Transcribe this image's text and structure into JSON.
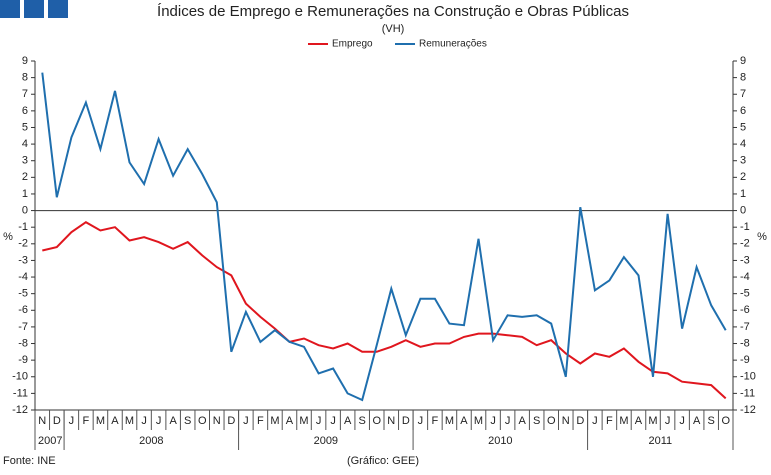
{
  "chart_data": {
    "type": "line",
    "title": "Índices de Emprego e Remunerações na Construção e Obras Públicas",
    "subtitle": "(VH)",
    "ylabel": "%",
    "y2label": "%",
    "categories": [
      "N",
      "D",
      "J",
      "F",
      "M",
      "A",
      "M",
      "J",
      "J",
      "A",
      "S",
      "O",
      "N",
      "D",
      "J",
      "F",
      "M",
      "A",
      "M",
      "J",
      "J",
      "A",
      "S",
      "O",
      "N",
      "D",
      "J",
      "F",
      "M",
      "A",
      "M",
      "J",
      "J",
      "A",
      "S",
      "O",
      "N",
      "D",
      "J",
      "F",
      "M",
      "A",
      "M",
      "J",
      "J",
      "A",
      "S",
      "O"
    ],
    "year_groups": [
      {
        "label": "2007",
        "count": 2
      },
      {
        "label": "2008",
        "count": 12
      },
      {
        "label": "2009",
        "count": 12
      },
      {
        "label": "2010",
        "count": 12
      },
      {
        "label": "2011",
        "count": 10
      }
    ],
    "series": [
      {
        "name": "Emprego",
        "color": "#e0161e",
        "values": [
          -2.4,
          -2.2,
          -1.3,
          -0.7,
          -1.2,
          -1.0,
          -1.8,
          -1.6,
          -1.9,
          -2.3,
          -1.9,
          -2.7,
          -3.4,
          -3.9,
          -5.6,
          -6.4,
          -7.1,
          -7.9,
          -7.7,
          -8.1,
          -8.3,
          -8.0,
          -8.5,
          -8.5,
          -8.2,
          -7.8,
          -8.2,
          -8.0,
          -8.0,
          -7.6,
          -7.4,
          -7.4,
          -7.5,
          -7.6,
          -8.1,
          -7.8,
          -8.6,
          -9.2,
          -8.6,
          -8.8,
          -8.3,
          -9.1,
          -9.7,
          -9.8,
          -10.3,
          -10.4,
          -10.5,
          -11.3
        ]
      },
      {
        "name": "Remunerações",
        "color": "#1f6fae",
        "values": [
          8.3,
          0.8,
          4.4,
          6.5,
          3.7,
          7.2,
          2.9,
          1.6,
          4.3,
          2.1,
          3.7,
          2.2,
          0.5,
          -8.5,
          -6.1,
          -7.9,
          -7.2,
          -7.9,
          -8.2,
          -9.8,
          -9.5,
          -11.0,
          -11.4,
          -8.1,
          -4.7,
          -7.5,
          -5.3,
          -5.3,
          -6.8,
          -6.9,
          -1.7,
          -7.8,
          -6.3,
          -6.4,
          -6.3,
          -6.8,
          -10.0,
          0.2,
          -4.8,
          -4.2,
          -2.8,
          -3.9,
          -10.0,
          -0.2,
          -7.1,
          -3.4,
          -5.7,
          -7.2
        ]
      }
    ],
    "ylim": [
      -12,
      9
    ],
    "yticks": [
      -12,
      -11,
      -10,
      -9,
      -8,
      -7,
      -6,
      -5,
      -4,
      -3,
      -2,
      -1,
      0,
      1,
      2,
      3,
      4,
      5,
      6,
      7,
      8,
      9
    ],
    "legend": "top",
    "source": "Fonte: INE",
    "credit": "(Gráfico: GEE)"
  }
}
